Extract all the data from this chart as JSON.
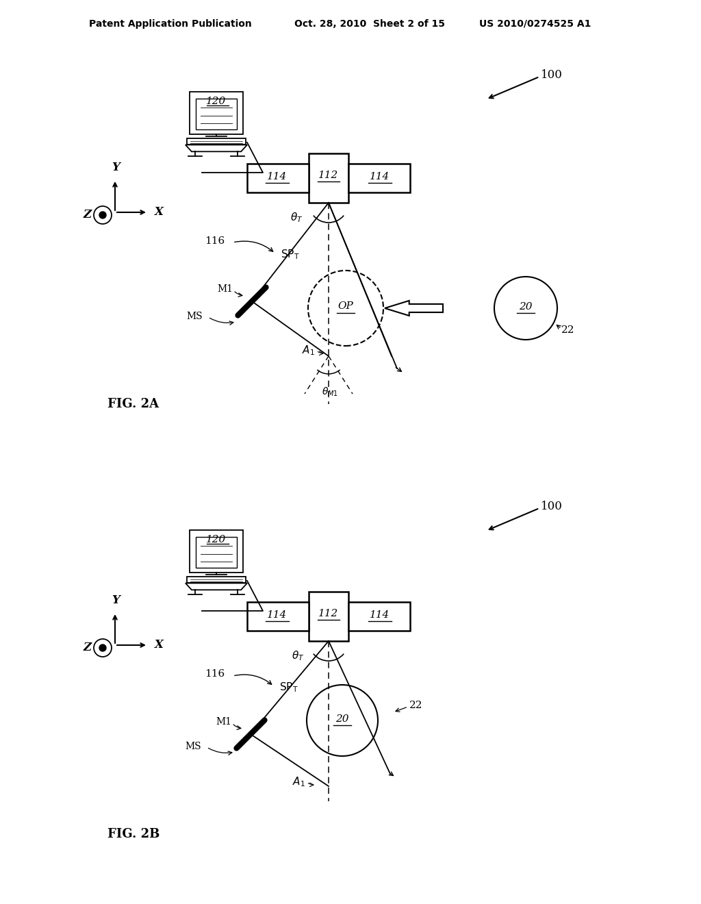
{
  "title_header_left": "Patent Application Publication",
  "title_header_mid": "Oct. 28, 2010  Sheet 2 of 15",
  "title_header_right": "US 2010/0274525 A1",
  "fig2a_label": "FIG. 2A",
  "fig2b_label": "FIG. 2B",
  "bg_color": "#ffffff",
  "line_color": "#000000",
  "label_100_a": "100",
  "label_100_b": "100",
  "label_120": "120",
  "label_112": "112",
  "label_114_left": "114",
  "label_114_right": "114",
  "label_22_a": "22",
  "label_22_b": "22",
  "label_20_a": "20",
  "label_20_b": "20",
  "label_op": "OP",
  "label_116_a": "116",
  "label_116_b": "116",
  "label_m1_a": "M1",
  "label_m1_b": "M1",
  "label_ms_a": "MS",
  "label_ms_b": "MS"
}
